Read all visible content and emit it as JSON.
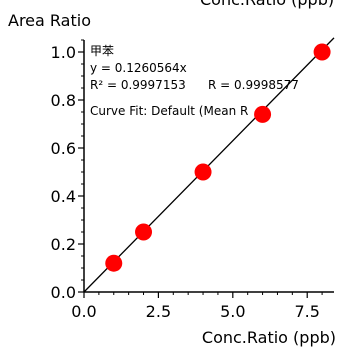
{
  "chart_data": {
    "type": "scatter",
    "xlabel": "Conc.Ratio (ppb)",
    "ylabel": "Area Ratio",
    "top_label_clipped": "Conc.Ratio (ppb)",
    "xlim": [
      0,
      8.4
    ],
    "ylim": [
      0,
      1.05
    ],
    "x_ticks": [
      0.0,
      2.5,
      5.0,
      7.5
    ],
    "x_tick_labels": [
      "0.0",
      "2.5",
      "5.0",
      "7.5"
    ],
    "y_ticks": [
      0.0,
      0.2,
      0.4,
      0.6,
      0.8,
      1.0
    ],
    "y_tick_labels": [
      "0.0",
      "0.2",
      "0.4",
      "0.6",
      "0.8",
      "1.0"
    ],
    "points": [
      {
        "x": 1,
        "y": 0.12
      },
      {
        "x": 2,
        "y": 0.25
      },
      {
        "x": 4,
        "y": 0.5
      },
      {
        "x": 6,
        "y": 0.74
      },
      {
        "x": 8,
        "y": 1.0
      }
    ],
    "fit_line": {
      "slope": 0.1260564,
      "intercept": 0
    },
    "annotations": {
      "compound": "甲苯",
      "equation": "y = 0.1260564x",
      "r_squared": "R² = 0.9997153",
      "r_value": "R = 0.9998577",
      "curve_fit": "Curve Fit: Default (Mean R"
    },
    "marker_color": "#ff0000",
    "line_color": "#000000",
    "axis_color": "#000000",
    "grid": false
  }
}
